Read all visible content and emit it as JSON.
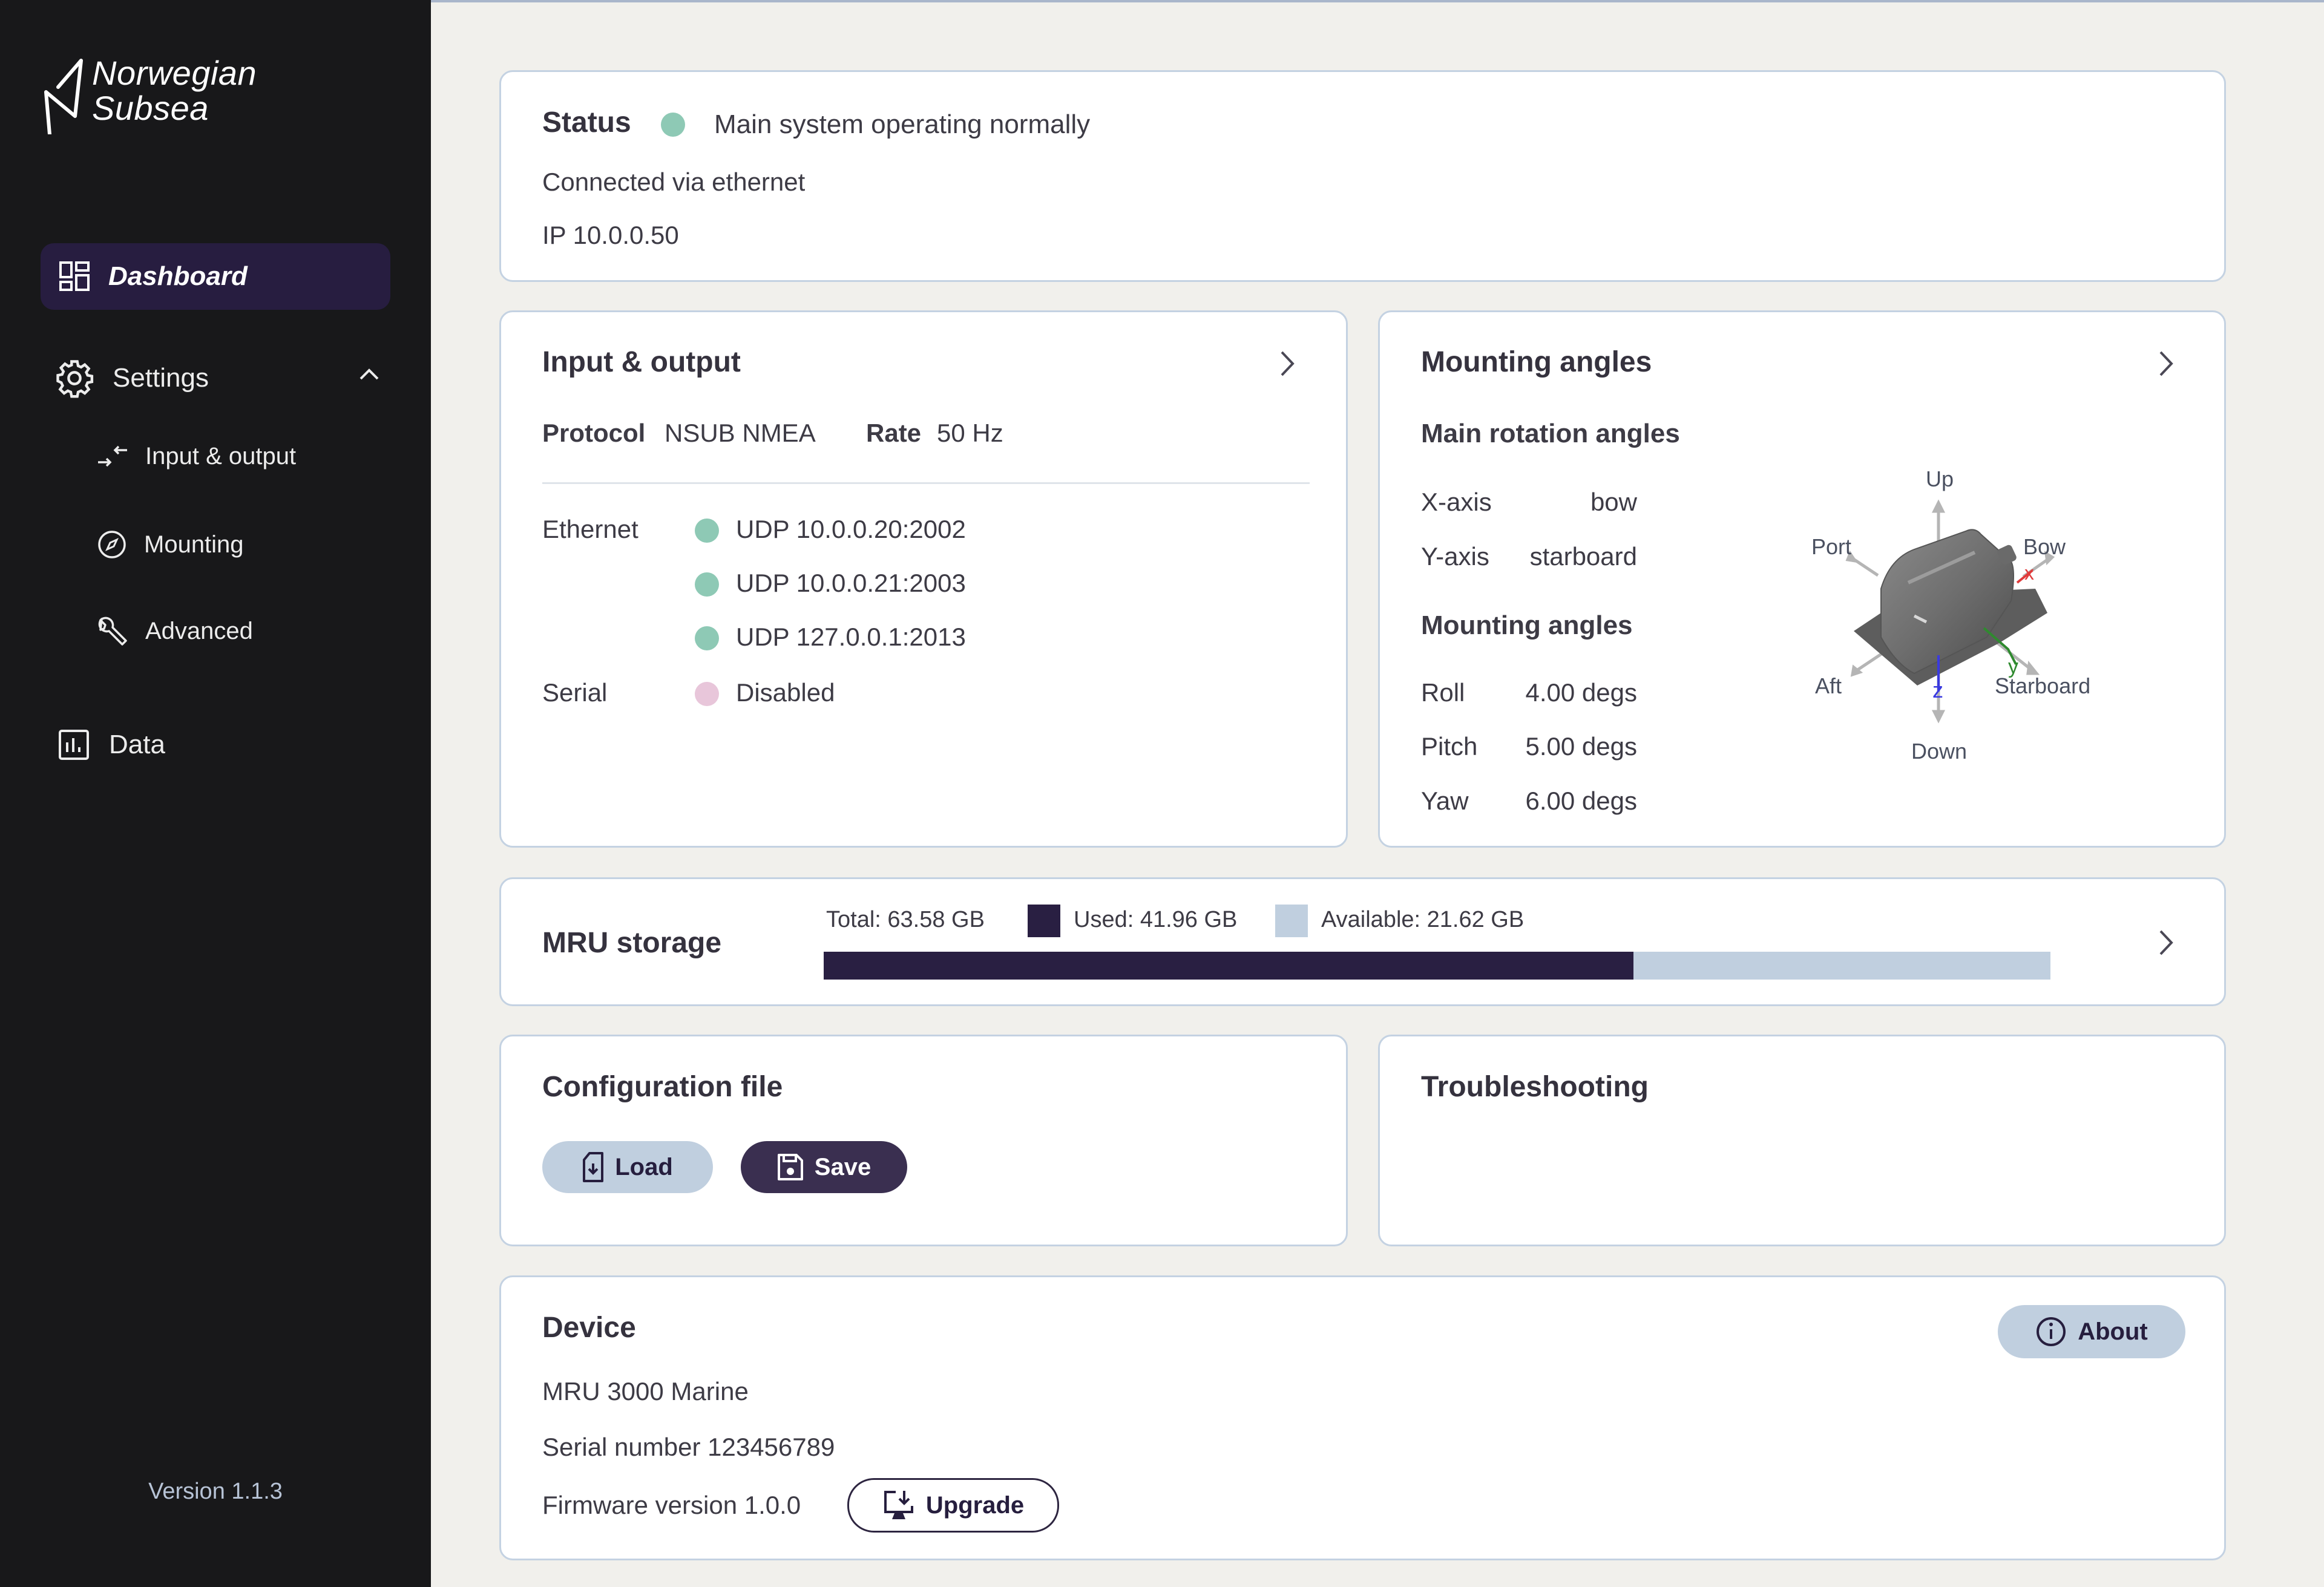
{
  "brand": {
    "line1": "Norwegian",
    "line2": "Subsea"
  },
  "sidebar": {
    "items": [
      {
        "label": "Dashboard",
        "icon": "dashboard-grid-icon",
        "active": true
      },
      {
        "label": "Settings",
        "icon": "gear-icon",
        "expanded": true,
        "children": [
          {
            "label": "Input & output",
            "icon": "arrows-exchange-icon"
          },
          {
            "label": "Mounting",
            "icon": "compass-icon"
          },
          {
            "label": "Advanced",
            "icon": "wrench-icon"
          }
        ]
      },
      {
        "label": "Data",
        "icon": "bar-chart-icon"
      }
    ],
    "version": "Version 1.1.3"
  },
  "status": {
    "title": "Status",
    "message": "Main system operating normally",
    "indicator_color": "#8ec9b5",
    "connection": "Connected via ethernet",
    "ip": "IP 10.0.0.50"
  },
  "io": {
    "title": "Input & output",
    "protocol_label": "Protocol",
    "protocol_value": "NSUB NMEA",
    "rate_label": "Rate",
    "rate_value": "50 Hz",
    "ethernet_label": "Ethernet",
    "ethernet": [
      {
        "value": "UDP 10.0.0.20:2002",
        "color": "#8ec9b5"
      },
      {
        "value": "UDP 10.0.0.21:2003",
        "color": "#8ec9b5"
      },
      {
        "value": "UDP 127.0.0.1:2013",
        "color": "#8ec9b5"
      }
    ],
    "serial_label": "Serial",
    "serial": {
      "value": "Disabled",
      "color": "#e8c6da"
    }
  },
  "mounting": {
    "title": "Mounting angles",
    "main_rotation_title": "Main rotation angles",
    "rotation": [
      {
        "label": "X-axis",
        "value": "bow"
      },
      {
        "label": "Y-axis",
        "value": "starboard"
      }
    ],
    "angles_title": "Mounting angles",
    "angles": [
      {
        "label": "Roll",
        "value": "4.00 degs"
      },
      {
        "label": "Pitch",
        "value": "5.00 degs"
      },
      {
        "label": "Yaw",
        "value": "6.00 degs"
      }
    ],
    "diagram": {
      "up": "Up",
      "down": "Down",
      "port": "Port",
      "bow": "Bow",
      "aft": "Aft",
      "starboard": "Starboard",
      "x": "x",
      "y": "y",
      "z": "z"
    }
  },
  "storage": {
    "title": "MRU storage",
    "total": "Total: 63.58 GB",
    "used": "Used: 41.96 GB",
    "available": "Available: 21.62 GB",
    "used_pct": 66,
    "used_color": "#291f42",
    "available_color": "#c0cfdf"
  },
  "config": {
    "title": "Configuration file",
    "load_label": "Load",
    "save_label": "Save"
  },
  "troubleshooting": {
    "title": "Troubleshooting"
  },
  "device": {
    "title": "Device",
    "model": "MRU 3000 Marine",
    "serial": "Serial number 123456789",
    "firmware": "Firmware version 1.0.0",
    "upgrade_label": "Upgrade",
    "about_label": "About"
  }
}
